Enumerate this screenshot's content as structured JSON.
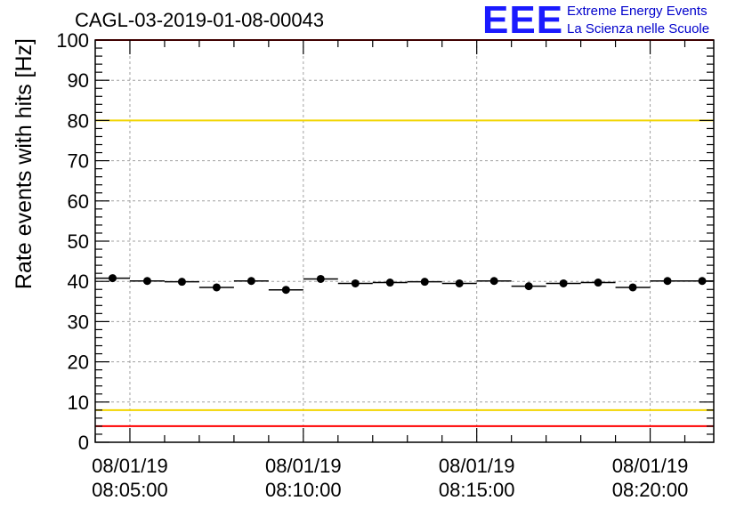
{
  "title": "CAGL-03-2019-01-08-00043",
  "logo": {
    "mark": "EEE",
    "line1": "Extreme Energy Events",
    "line2": "La Scienza nelle Scuole"
  },
  "colors": {
    "data": "#000000",
    "limit_outer": "#ff0000",
    "limit_inner": "#f2d500",
    "grid": "#a0a0a0",
    "logo": "#1a1aff"
  },
  "chart_data": {
    "type": "scatter",
    "title": "CAGL-03-2019-01-08-00043",
    "ylabel": "Rate events with hits [Hz]",
    "xlabel": "",
    "ylim": [
      0,
      100
    ],
    "xlim": [
      "2019-01-08 08:04:00",
      "2019-01-08 08:21:50"
    ],
    "y_ticks": [
      "0",
      "10",
      "20",
      "30",
      "40",
      "50",
      "60",
      "70",
      "80",
      "90",
      "100"
    ],
    "x_ticks": [
      {
        "time": "2019-01-08 08:05:00",
        "line1": "08/01/19",
        "line2": "08:05:00"
      },
      {
        "time": "2019-01-08 08:10:00",
        "line1": "08/01/19",
        "line2": "08:10:00"
      },
      {
        "time": "2019-01-08 08:15:00",
        "line1": "08/01/19",
        "line2": "08:15:00"
      },
      {
        "time": "2019-01-08 08:20:00",
        "line1": "08/01/19",
        "line2": "08:20:00"
      }
    ],
    "grid": true,
    "bin_width_seconds": 60,
    "x": [
      "2019-01-08 08:04:30",
      "2019-01-08 08:05:30",
      "2019-01-08 08:06:30",
      "2019-01-08 08:07:30",
      "2019-01-08 08:08:30",
      "2019-01-08 08:09:30",
      "2019-01-08 08:10:30",
      "2019-01-08 08:11:30",
      "2019-01-08 08:12:30",
      "2019-01-08 08:13:30",
      "2019-01-08 08:14:30",
      "2019-01-08 08:15:30",
      "2019-01-08 08:16:30",
      "2019-01-08 08:17:30",
      "2019-01-08 08:18:30",
      "2019-01-08 08:19:30",
      "2019-01-08 08:20:30",
      "2019-01-08 08:21:30"
    ],
    "values": [
      40.8,
      40.1,
      39.9,
      38.5,
      40.1,
      37.9,
      40.6,
      39.5,
      39.7,
      39.9,
      39.5,
      40.1,
      38.8,
      39.5,
      39.7,
      38.5,
      40.1,
      40.1
    ],
    "reference_lines": [
      {
        "value": 100,
        "color": "limit_outer"
      },
      {
        "value": 80,
        "color": "limit_inner"
      },
      {
        "value": 8,
        "color": "limit_inner"
      },
      {
        "value": 4,
        "color": "limit_outer"
      }
    ]
  }
}
